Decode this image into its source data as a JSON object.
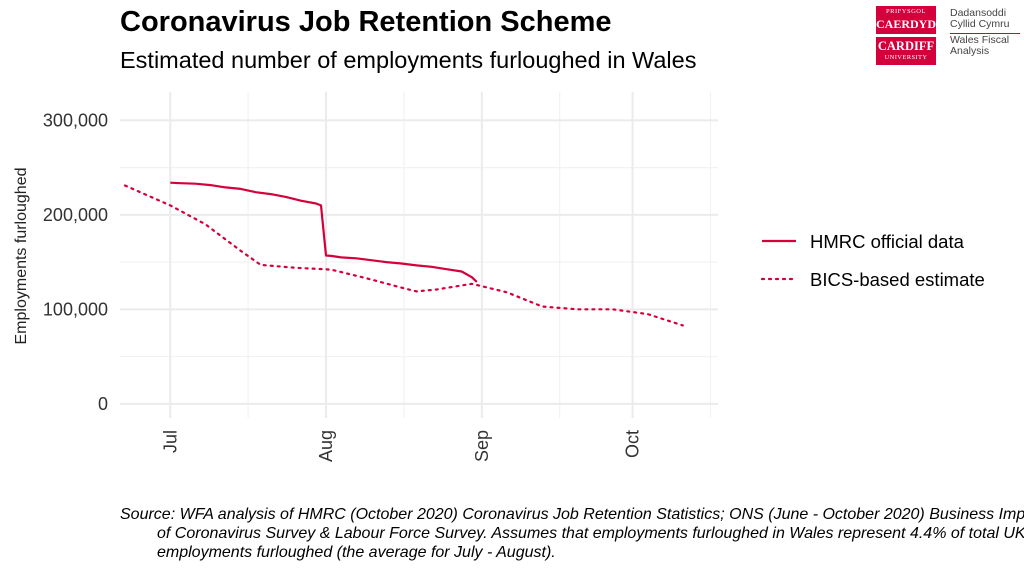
{
  "header": {
    "title": "Coronavirus Job Retention Scheme",
    "subtitle": "Estimated number of employments furloughed in Wales"
  },
  "logo": {
    "box1_line1": "PRIFYSGOL",
    "box1_line2": "CAERDYDD",
    "box2_line1": "CARDIFF",
    "box2_line2": "UNIVERSITY",
    "text1_line1": "Dadansoddi",
    "text1_line2": "Cyllid Cymru",
    "text2_line1": "Wales Fiscal",
    "text2_line2": "Analysis",
    "brand_color": "#d4003c"
  },
  "source": "Source: WFA analysis of HMRC (October 2020) Coronavirus Job Retention Statistics; ONS (June - October 2020) Business Impact of Coronavirus Survey & Labour Force Survey. Assumes that employments furloughed in Wales represent 4.4% of total UK employments furloughed (the average for July - August).",
  "chart_data": {
    "type": "line",
    "title": "",
    "xlabel": "",
    "ylabel": "Employments furloughed",
    "xlim": [
      "2020-06-21",
      "2020-10-18"
    ],
    "ylim": [
      -15000,
      330000
    ],
    "x_ticks": [
      {
        "date": "2020-07-01",
        "label": "Jul"
      },
      {
        "date": "2020-08-01",
        "label": "Aug"
      },
      {
        "date": "2020-09-01",
        "label": "Sep"
      },
      {
        "date": "2020-10-01",
        "label": "Oct"
      }
    ],
    "y_ticks": [
      {
        "value": 0,
        "label": "0"
      },
      {
        "value": 100000,
        "label": "100,000"
      },
      {
        "value": 200000,
        "label": "200,000"
      },
      {
        "value": 300000,
        "label": "300,000"
      }
    ],
    "grid": true,
    "legend_position": "right",
    "series": [
      {
        "name": "HMRC official data",
        "style": "solid",
        "color": "#d4003c",
        "points": [
          [
            "2020-07-01",
            234000
          ],
          [
            "2020-07-03",
            233500
          ],
          [
            "2020-07-06",
            233000
          ],
          [
            "2020-07-09",
            231500
          ],
          [
            "2020-07-12",
            229000
          ],
          [
            "2020-07-15",
            227500
          ],
          [
            "2020-07-18",
            224000
          ],
          [
            "2020-07-21",
            222000
          ],
          [
            "2020-07-24",
            219000
          ],
          [
            "2020-07-27",
            215000
          ],
          [
            "2020-07-30",
            212000
          ],
          [
            "2020-07-31",
            210000
          ],
          [
            "2020-08-01",
            157000
          ],
          [
            "2020-08-02",
            156500
          ],
          [
            "2020-08-04",
            155000
          ],
          [
            "2020-08-07",
            154000
          ],
          [
            "2020-08-10",
            152000
          ],
          [
            "2020-08-13",
            150000
          ],
          [
            "2020-08-16",
            148500
          ],
          [
            "2020-08-19",
            146500
          ],
          [
            "2020-08-22",
            145000
          ],
          [
            "2020-08-25",
            142500
          ],
          [
            "2020-08-28",
            140000
          ],
          [
            "2020-08-30",
            134000
          ],
          [
            "2020-08-31",
            129000
          ]
        ]
      },
      {
        "name": "BICS-based estimate",
        "style": "dotted",
        "color": "#d4003c",
        "points": [
          [
            "2020-06-22",
            231000
          ],
          [
            "2020-07-01",
            210000
          ],
          [
            "2020-07-08",
            190000
          ],
          [
            "2020-07-15",
            162000
          ],
          [
            "2020-07-19",
            147000
          ],
          [
            "2020-07-26",
            144000
          ],
          [
            "2020-08-02",
            142000
          ],
          [
            "2020-08-09",
            133000
          ],
          [
            "2020-08-16",
            123000
          ],
          [
            "2020-08-19",
            119000
          ],
          [
            "2020-08-23",
            121000
          ],
          [
            "2020-08-30",
            127000
          ],
          [
            "2020-09-06",
            118000
          ],
          [
            "2020-09-13",
            103000
          ],
          [
            "2020-09-20",
            100000
          ],
          [
            "2020-09-27",
            100000
          ],
          [
            "2020-10-04",
            95000
          ],
          [
            "2020-10-11",
            83000
          ]
        ]
      }
    ]
  }
}
